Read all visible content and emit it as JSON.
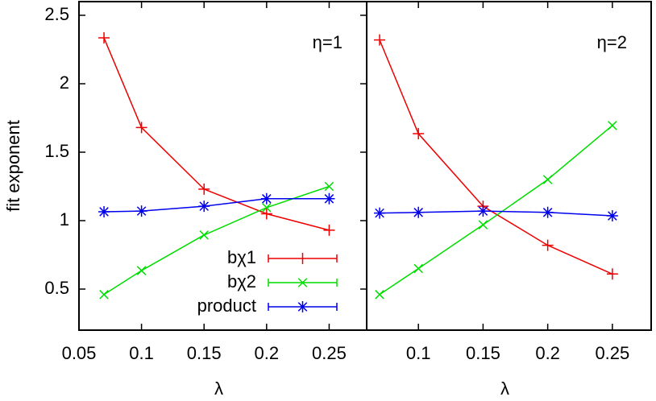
{
  "chart_data": [
    {
      "type": "line",
      "annotation": "η=1",
      "xlabel": "λ",
      "ylabel": "fit exponent",
      "x": [
        0.07,
        0.1,
        0.15,
        0.2,
        0.25
      ],
      "xlim": [
        0.05,
        0.28
      ],
      "xticks": [
        0.05,
        0.1,
        0.15,
        0.2,
        0.25
      ],
      "ylim": [
        0.2,
        2.6
      ],
      "yticks": [
        0.5,
        1,
        1.5,
        2,
        2.5
      ],
      "legend": "lower right",
      "series": [
        {
          "name": "bχ1",
          "color": "#ee0000",
          "marker": "plus",
          "values": [
            2.335,
            1.68,
            1.23,
            1.05,
            0.93
          ]
        },
        {
          "name": "bχ2",
          "color": "#00dd00",
          "marker": "cross",
          "values": [
            0.46,
            0.635,
            0.895,
            1.095,
            1.25
          ]
        },
        {
          "name": "product",
          "color": "#0000ee",
          "marker": "star",
          "values": [
            1.065,
            1.07,
            1.105,
            1.16,
            1.16
          ]
        }
      ]
    },
    {
      "type": "line",
      "annotation": "η=2",
      "xlabel": "λ",
      "x": [
        0.07,
        0.1,
        0.15,
        0.2,
        0.25
      ],
      "xlim": [
        0.06,
        0.28
      ],
      "xticks": [
        0.1,
        0.15,
        0.2,
        0.25
      ],
      "ylim": [
        0.2,
        2.6
      ],
      "series": [
        {
          "color": "#ee0000",
          "marker": "plus",
          "values": [
            2.32,
            1.635,
            1.105,
            0.82,
            0.61
          ]
        },
        {
          "color": "#00dd00",
          "marker": "cross",
          "values": [
            0.46,
            0.65,
            0.97,
            1.3,
            1.695
          ]
        },
        {
          "color": "#0000ee",
          "marker": "star",
          "values": [
            1.055,
            1.06,
            1.07,
            1.06,
            1.035
          ]
        }
      ]
    }
  ]
}
